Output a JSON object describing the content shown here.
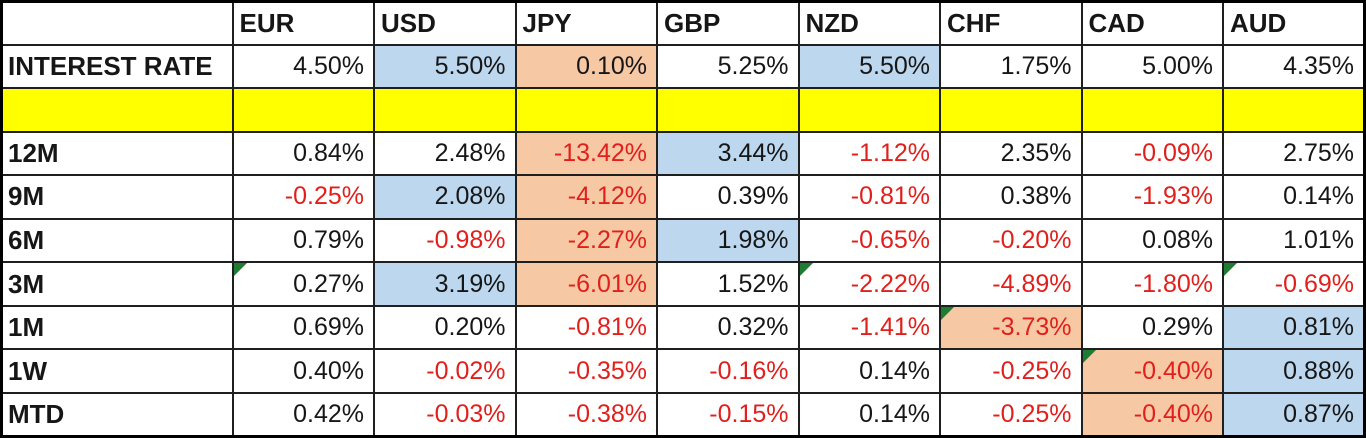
{
  "colors": {
    "highlight_blue": "#BDD7EE",
    "highlight_orange": "#F7C8A4",
    "spacer_yellow": "#FFFF00",
    "negative_red": "#E0201C",
    "marker_green": "#1E7D32"
  },
  "table": {
    "columns": [
      "",
      "EUR",
      "USD",
      "JPY",
      "GBP",
      "NZD",
      "CHF",
      "CAD",
      "AUD"
    ],
    "rows": [
      {
        "label": "INTEREST RATE",
        "type": "data",
        "cells": [
          {
            "text": "4.50%"
          },
          {
            "text": "5.50%",
            "bg": "blue"
          },
          {
            "text": "0.10%",
            "bg": "orange"
          },
          {
            "text": "5.25%"
          },
          {
            "text": "5.50%",
            "bg": "blue"
          },
          {
            "text": "1.75%"
          },
          {
            "text": "5.00%"
          },
          {
            "text": "4.35%"
          }
        ]
      },
      {
        "label": "",
        "type": "spacer",
        "cells": []
      },
      {
        "label": "12M",
        "type": "data",
        "cells": [
          {
            "text": "0.84%"
          },
          {
            "text": "2.48%"
          },
          {
            "text": "-13.42%",
            "negative": true,
            "bg": "orange"
          },
          {
            "text": "3.44%",
            "bg": "blue"
          },
          {
            "text": "-1.12%",
            "negative": true
          },
          {
            "text": "2.35%"
          },
          {
            "text": "-0.09%",
            "negative": true
          },
          {
            "text": "2.75%"
          }
        ]
      },
      {
        "label": "9M",
        "type": "data",
        "cells": [
          {
            "text": "-0.25%",
            "negative": true
          },
          {
            "text": "2.08%",
            "bg": "blue"
          },
          {
            "text": "-4.12%",
            "negative": true,
            "bg": "orange"
          },
          {
            "text": "0.39%"
          },
          {
            "text": "-0.81%",
            "negative": true
          },
          {
            "text": "0.38%"
          },
          {
            "text": "-1.93%",
            "negative": true
          },
          {
            "text": "0.14%"
          }
        ]
      },
      {
        "label": "6M",
        "type": "data",
        "cells": [
          {
            "text": "0.79%"
          },
          {
            "text": "-0.98%",
            "negative": true
          },
          {
            "text": "-2.27%",
            "negative": true,
            "bg": "orange"
          },
          {
            "text": "1.98%",
            "bg": "blue"
          },
          {
            "text": "-0.65%",
            "negative": true
          },
          {
            "text": "-0.20%",
            "negative": true
          },
          {
            "text": "0.08%"
          },
          {
            "text": "1.01%"
          }
        ]
      },
      {
        "label": "3M",
        "type": "data",
        "cells": [
          {
            "text": "0.27%",
            "marker": true
          },
          {
            "text": "3.19%",
            "bg": "blue"
          },
          {
            "text": "-6.01%",
            "negative": true,
            "bg": "orange"
          },
          {
            "text": "1.52%"
          },
          {
            "text": "-2.22%",
            "negative": true,
            "marker": true
          },
          {
            "text": "-4.89%",
            "negative": true
          },
          {
            "text": "-1.80%",
            "negative": true
          },
          {
            "text": "-0.69%",
            "negative": true,
            "marker": true
          }
        ]
      },
      {
        "label": "1M",
        "type": "data",
        "cells": [
          {
            "text": "0.69%"
          },
          {
            "text": "0.20%"
          },
          {
            "text": "-0.81%",
            "negative": true
          },
          {
            "text": "0.32%"
          },
          {
            "text": "-1.41%",
            "negative": true
          },
          {
            "text": "-3.73%",
            "negative": true,
            "bg": "orange",
            "marker": true
          },
          {
            "text": "0.29%"
          },
          {
            "text": "0.81%",
            "bg": "blue"
          }
        ]
      },
      {
        "label": "1W",
        "type": "data",
        "cells": [
          {
            "text": "0.40%"
          },
          {
            "text": "-0.02%",
            "negative": true
          },
          {
            "text": "-0.35%",
            "negative": true
          },
          {
            "text": "-0.16%",
            "negative": true
          },
          {
            "text": "0.14%"
          },
          {
            "text": "-0.25%",
            "negative": true
          },
          {
            "text": "-0.40%",
            "negative": true,
            "bg": "orange",
            "marker": true
          },
          {
            "text": "0.88%",
            "bg": "blue"
          }
        ]
      },
      {
        "label": "MTD",
        "type": "data",
        "cells": [
          {
            "text": "0.42%"
          },
          {
            "text": "-0.03%",
            "negative": true
          },
          {
            "text": "-0.38%",
            "negative": true
          },
          {
            "text": "-0.15%",
            "negative": true
          },
          {
            "text": "0.14%"
          },
          {
            "text": "-0.25%",
            "negative": true
          },
          {
            "text": "-0.40%",
            "negative": true,
            "bg": "orange"
          },
          {
            "text": "0.87%",
            "bg": "blue"
          }
        ]
      }
    ]
  }
}
